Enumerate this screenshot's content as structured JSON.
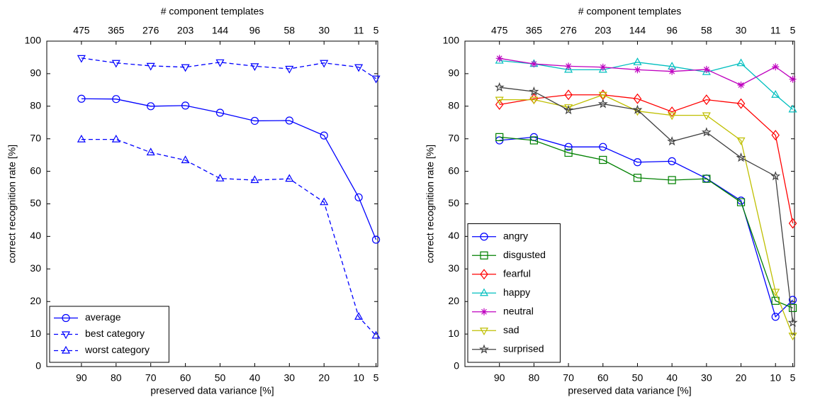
{
  "chart_data": [
    {
      "type": "line",
      "x2_label": "# component templates",
      "xlabel": "preserved data variance [%]",
      "ylabel": "correct recognition rate [%]",
      "x": [
        90,
        80,
        70,
        60,
        50,
        40,
        30,
        20,
        10,
        5
      ],
      "xlim": [
        100,
        4.5
      ],
      "xticks": [
        90,
        80,
        70,
        60,
        50,
        40,
        30,
        20,
        10,
        5
      ],
      "x2ticks": [
        {
          "value": 90,
          "label": "475"
        },
        {
          "value": 80,
          "label": "365"
        },
        {
          "value": 70,
          "label": "276"
        },
        {
          "value": 60,
          "label": "203"
        },
        {
          "value": 50,
          "label": "144"
        },
        {
          "value": 40,
          "label": "96"
        },
        {
          "value": 30,
          "label": "58"
        },
        {
          "value": 20,
          "label": "30"
        },
        {
          "value": 10,
          "label": "11"
        },
        {
          "value": 5,
          "label": "5"
        }
      ],
      "ylim": [
        0,
        100
      ],
      "yticks": [
        0,
        10,
        20,
        30,
        40,
        50,
        60,
        70,
        80,
        90,
        100
      ],
      "legend": "lower left",
      "series": [
        {
          "name": "average",
          "color": "#0000ff",
          "marker": "circle",
          "linestyle": "solid",
          "values": [
            82.3,
            82.2,
            80,
            80.2,
            78,
            75.5,
            75.6,
            71,
            52,
            39
          ]
        },
        {
          "name": "best category",
          "color": "#0000ff",
          "marker": "triangle-down",
          "linestyle": "dashed",
          "values": [
            94.8,
            93.3,
            92.4,
            92,
            93.5,
            92.3,
            91.5,
            93.3,
            92,
            88.5
          ]
        },
        {
          "name": "worst category",
          "color": "#0000ff",
          "marker": "triangle-up",
          "linestyle": "dashed",
          "values": [
            69.8,
            69.8,
            65.8,
            63.4,
            57.8,
            57.3,
            57.7,
            50.5,
            15.3,
            9.5
          ]
        }
      ]
    },
    {
      "type": "line",
      "x2_label": "# component templates",
      "xlabel": "preserved data variance [%]",
      "ylabel": "correct recognition rate [%]",
      "x": [
        90,
        80,
        70,
        60,
        50,
        40,
        30,
        20,
        10,
        5
      ],
      "xlim": [
        100,
        4.5
      ],
      "xticks": [
        90,
        80,
        70,
        60,
        50,
        40,
        30,
        20,
        10,
        5
      ],
      "x2ticks": [
        {
          "value": 90,
          "label": "475"
        },
        {
          "value": 80,
          "label": "365"
        },
        {
          "value": 70,
          "label": "276"
        },
        {
          "value": 60,
          "label": "203"
        },
        {
          "value": 50,
          "label": "144"
        },
        {
          "value": 40,
          "label": "96"
        },
        {
          "value": 30,
          "label": "58"
        },
        {
          "value": 20,
          "label": "30"
        },
        {
          "value": 10,
          "label": "11"
        },
        {
          "value": 5,
          "label": "5"
        }
      ],
      "ylim": [
        0,
        100
      ],
      "yticks": [
        0,
        10,
        20,
        30,
        40,
        50,
        60,
        70,
        80,
        90,
        100
      ],
      "legend": "lower left",
      "series": [
        {
          "name": "angry",
          "color": "#0000ff",
          "marker": "circle",
          "linestyle": "solid",
          "values": [
            69.5,
            70.5,
            67.5,
            67.5,
            62.8,
            63.1,
            57.8,
            51,
            15.3,
            20.5
          ]
        },
        {
          "name": "disgusted",
          "color": "#008000",
          "marker": "square",
          "linestyle": "solid",
          "values": [
            70.5,
            69.5,
            65.7,
            63.5,
            58,
            57.3,
            57.7,
            50.5,
            20.2,
            18
          ]
        },
        {
          "name": "fearful",
          "color": "#ff0000",
          "marker": "diamond",
          "linestyle": "solid",
          "values": [
            80.5,
            82.3,
            83.5,
            83.5,
            82.3,
            78.3,
            82,
            80.8,
            71.1,
            44
          ]
        },
        {
          "name": "happy",
          "color": "#00bfbf",
          "marker": "triangle-up",
          "linestyle": "solid",
          "values": [
            94,
            93,
            91.2,
            91.2,
            93.5,
            92.2,
            90.5,
            93.2,
            83.5,
            79
          ]
        },
        {
          "name": "neutral",
          "color": "#bf00bf",
          "marker": "asterisk",
          "linestyle": "solid",
          "values": [
            94.7,
            93,
            92.3,
            92,
            91.2,
            90.7,
            91.3,
            86.5,
            92.1,
            88.3
          ]
        },
        {
          "name": "sad",
          "color": "#bfbf00",
          "marker": "triangle-down",
          "linestyle": "solid",
          "values": [
            82,
            82,
            79.7,
            83.5,
            78.5,
            77.2,
            77.2,
            69.5,
            23,
            9.5
          ]
        },
        {
          "name": "surprised",
          "color": "#404040",
          "marker": "star",
          "linestyle": "solid",
          "values": [
            85.8,
            84.5,
            78.8,
            80.7,
            78.9,
            69.2,
            72,
            64.2,
            58.5,
            13.5
          ]
        }
      ]
    }
  ]
}
